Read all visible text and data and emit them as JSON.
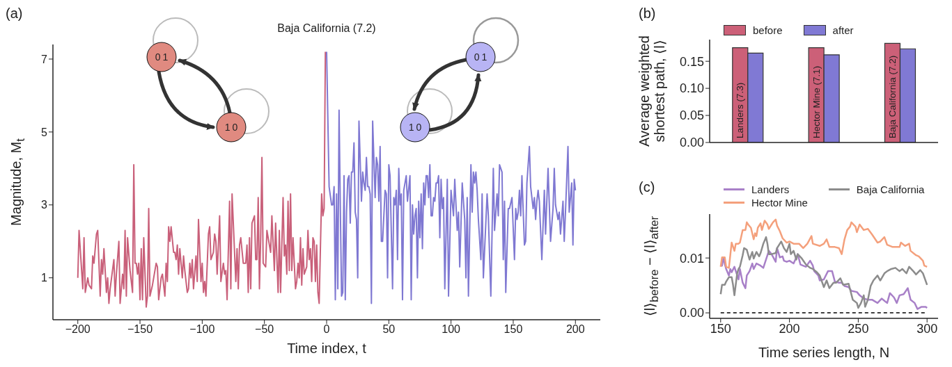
{
  "chart_data": [
    {
      "type": "line",
      "title": "Baja California (7.2)",
      "xlabel": "Time index, t",
      "ylabel": "Magnitude, M$_{t}$",
      "annotations": [
        "(a)",
        "01",
        "10",
        "01",
        "10"
      ],
      "xlim": [
        -220,
        220
      ],
      "xticks": [
        -200,
        -150,
        -100,
        -50,
        0,
        50,
        100,
        150,
        200
      ],
      "ylim": [
        -0.15,
        7.4
      ],
      "yticks": [
        1,
        3,
        5,
        7
      ],
      "series": [
        {
          "color": "#c9607a",
          "x": [
            -200,
            -199,
            -196,
            -195,
            -194,
            -192,
            -191,
            -189,
            -188,
            -187,
            -185,
            -184,
            -182,
            -181,
            -180,
            -179,
            -177,
            -176,
            -175,
            -174,
            -171,
            -170,
            -169,
            -167,
            -166,
            -164,
            -163,
            -162,
            -161,
            -160,
            -158,
            -156,
            -155,
            -154,
            -153,
            -152,
            -151,
            -150,
            -149,
            -148,
            -147,
            -145,
            -144,
            -143,
            -142,
            -140,
            -137,
            -136,
            -135,
            -133,
            -132,
            -130,
            -129,
            -128,
            -127,
            -126,
            -125,
            -123,
            -122,
            -121,
            -120,
            -119,
            -118,
            -116,
            -115,
            -114,
            -112,
            -111,
            -110,
            -109,
            -108,
            -107,
            -105,
            -104,
            -103,
            -101,
            -100,
            -99,
            -98,
            -97,
            -95,
            -94,
            -93,
            -91,
            -90,
            -89,
            -88,
            -86,
            -85,
            -83,
            -82,
            -81,
            -80,
            -78,
            -77,
            -76,
            -73,
            -72,
            -71,
            -70,
            -69,
            -67,
            -65,
            -64,
            -63,
            -62,
            -61,
            -60,
            -58,
            -57,
            -56,
            -55,
            -54,
            -53,
            -52,
            -51,
            -49,
            -48,
            -47,
            -45,
            -44,
            -42,
            -41,
            -39,
            -38,
            -37,
            -35,
            -34,
            -33,
            -32,
            -31,
            -30,
            -29,
            -28,
            -27,
            -25,
            -24,
            -23,
            -22,
            -21,
            -20,
            -19,
            -18,
            -16,
            -15,
            -14,
            -13,
            -12,
            -11,
            -10,
            -9,
            -8,
            -7,
            -6,
            -4,
            -3,
            -2,
            -1
          ],
          "values": [
            1.0,
            2.3,
            0.7,
            2.1,
            0.6,
            1.0,
            0.8,
            0.7,
            1.6,
            1.4,
            2.2,
            2.3,
            0.5,
            1.5,
            1.1,
            1.8,
            0.6,
            1.0,
            0.3,
            0.7,
            1.5,
            0.5,
            1.1,
            2.0,
            0.3,
            1.1,
            0.7,
            2.3,
            0.5,
            2.1,
            1.2,
            0.6,
            4.1,
            1.4,
            1.4,
            1.1,
            1.4,
            0.4,
            1.8,
            0.4,
            2.1,
            0.2,
            0.5,
            2.9,
            0.5,
            0.8,
            1.4,
            1.3,
            0.4,
            1.0,
            1.1,
            0.5,
            1.4,
            0.9,
            2.4,
            2.0,
            2.4,
            1.7,
            1.7,
            1.5,
            1.9,
            1.1,
            1.8,
            1.0,
            1.6,
            1.2,
            0.6,
            0.7,
            1.4,
            1.0,
            1.5,
            0.7,
            1.6,
            0.9,
            2.6,
            0.9,
            1.4,
            0.6,
            0.9,
            0.5,
            2.2,
            2.4,
            1.5,
            1.7,
            2.2,
            2.0,
            1.1,
            2.7,
            0.9,
            1.4,
            1.1,
            1.2,
            0.4,
            3.1,
            0.7,
            3.3,
            0.9,
            1.8,
            0.7,
            1.9,
            2.1,
            1.4,
            1.4,
            1.9,
            0.6,
            2.1,
            0.7,
            2.5,
            2.7,
            1.5,
            1.5,
            3.2,
            0.7,
            2.1,
            4.3,
            1.4,
            1.3,
            2.3,
            2.1,
            1.7,
            2.7,
            1.2,
            2.5,
            0.6,
            2.3,
            0.6,
            3.2,
            1.6,
            1.9,
            1.1,
            3.1,
            1.2,
            3.3,
            1.2,
            2.1,
            0.7,
            0.9,
            1.4,
            1.0,
            2.1,
            0.8,
            1.8,
            1.1,
            1.3,
            2.3,
            1.5,
            1.8,
            0.9,
            2.1,
            2.0,
            0.9,
            1.9,
            0.6,
            0.3,
            3.3,
            2.7,
            2.9,
            7.2
          ]
        },
        {
          "color": "#7f78d2",
          "x": [
            0,
            2,
            4,
            5,
            6,
            7,
            8,
            9,
            10,
            11,
            12,
            13,
            14,
            15,
            16,
            17,
            18,
            19,
            20,
            21,
            22,
            23,
            24,
            25,
            26,
            28,
            29,
            30,
            31,
            32,
            33,
            34,
            35,
            36,
            37,
            39,
            40,
            41,
            42,
            43,
            44,
            45,
            47,
            48,
            49,
            50,
            51,
            53,
            54,
            55,
            56,
            57,
            58,
            59,
            60,
            61,
            62,
            64,
            65,
            67,
            68,
            69,
            70,
            71,
            72,
            73,
            74,
            75,
            76,
            77,
            78,
            79,
            80,
            81,
            82,
            83,
            84,
            85,
            86,
            87,
            88,
            89,
            90,
            91,
            92,
            93,
            94,
            95,
            97,
            98,
            100,
            102,
            103,
            105,
            106,
            107,
            109,
            111,
            112,
            113,
            114,
            116,
            117,
            118,
            119,
            120,
            121,
            122,
            124,
            125,
            126,
            129,
            130,
            132,
            134,
            135,
            137,
            138,
            139,
            141,
            142,
            143,
            144,
            146,
            147,
            149,
            151,
            152,
            153,
            154,
            155,
            156,
            157,
            159,
            160,
            161,
            163,
            164,
            166,
            167,
            168,
            169,
            170,
            171,
            173,
            175,
            176,
            178,
            180,
            182,
            183,
            184,
            186,
            187,
            188,
            190,
            191,
            192,
            194,
            195,
            197,
            198,
            199,
            200
          ],
          "values": [
            7.2,
            3.5,
            3.0,
            3.0,
            3.5,
            0.4,
            3.3,
            0.7,
            5.6,
            3.0,
            0.5,
            0.6,
            3.8,
            0.4,
            2.8,
            3.7,
            3.8,
            2.5,
            3.9,
            3.9,
            4.7,
            2.8,
            2.6,
            1.0,
            5.3,
            3.1,
            3.9,
            3.6,
            3.4,
            4.3,
            3.5,
            3.5,
            3.3,
            0.3,
            5.3,
            3.2,
            4.3,
            4.1,
            3.1,
            4.6,
            2.0,
            2.0,
            3.4,
            3.3,
            1.0,
            4.1,
            3.8,
            0.7,
            3.2,
            3.0,
            3.4,
            1.5,
            4.0,
            3.0,
            3.3,
            0.4,
            3.4,
            3.8,
            3.1,
            3.8,
            0.4,
            3.0,
            2.2,
            2.7,
            2.9,
            1.0,
            3.1,
            2.1,
            3.3,
            1.8,
            3.6,
            3.0,
            3.8,
            3.8,
            3.2,
            4.1,
            2.7,
            2.7,
            3.2,
            3.1,
            3.6,
            3.6,
            3.8,
            2.1,
            3.7,
            2.9,
            3.2,
            0.7,
            3.7,
            0.5,
            3.4,
            2.7,
            3.7,
            2.3,
            2.8,
            1.3,
            3.6,
            2.6,
            1.0,
            3.2,
            0.5,
            4.1,
            2.8,
            3.9,
            3.6,
            3.9,
            3.4,
            2.6,
            1.5,
            3.3,
            1.0,
            3.3,
            2.7,
            0.5,
            4.0,
            2.3,
            3.3,
            2.7,
            4.1,
            3.9,
            1.5,
            3.1,
            0.6,
            2.9,
            2.9,
            3.2,
            1.5,
            2.9,
            2.6,
            2.8,
            3.4,
            2.7,
            3.8,
            1.9,
            2.0,
            3.6,
            4.6,
            3.5,
            2.9,
            3.2,
            2.6,
            3.1,
            3.4,
            3.1,
            1.5,
            3.4,
            2.2,
            4.0,
            2.0,
            2.9,
            4.0,
            3.0,
            2.6,
            2.8,
            2.2,
            3.1,
            2.0,
            2.8,
            4.6,
            2.8,
            3.6,
            1.9,
            3.7,
            3.4
          ]
        }
      ]
    },
    {
      "type": "bar",
      "ylabel": "Average weighted shortest path, ⟨l⟩",
      "annotations": [
        "(b)"
      ],
      "categories": [
        "Landers (7.3)",
        "Hector Mine (7.1)",
        "Baja California (7.2)"
      ],
      "ylim": [
        0,
        0.19
      ],
      "yticks": [
        {
          "value": 0,
          "label": "0.00"
        },
        {
          "value": 0.05,
          "label": "0.05"
        },
        {
          "value": 0.1,
          "label": "0.10"
        },
        {
          "value": 0.15,
          "label": "0.15"
        }
      ],
      "legend": "top",
      "series": [
        {
          "name": "before",
          "color": "#cc6078",
          "values": [
            0.175,
            0.175,
            0.183
          ]
        },
        {
          "name": "after",
          "color": "#8079d4",
          "values": [
            0.165,
            0.162,
            0.173
          ]
        }
      ]
    },
    {
      "type": "line",
      "xlabel": "Time series length, N",
      "ylabel": "⟨l⟩$_{before}$ − ⟨l⟩$_{after}$",
      "annotations": [
        "(c)"
      ],
      "xlim": [
        142,
        308
      ],
      "xticks": [
        150,
        200,
        250,
        300
      ],
      "ylim": [
        -0.001,
        0.018
      ],
      "yticks": [
        {
          "value": 0,
          "label": "0.00"
        },
        0.01
      ],
      "legend": "top",
      "ref_lines": [
        {
          "axis": "y",
          "value": 0,
          "color": "#000000",
          "line_style": "dashed"
        }
      ],
      "series": [
        {
          "name": "Landers",
          "color": "#a880c8",
          "x": [
            150,
            151,
            152,
            153,
            154,
            156,
            157,
            158,
            160,
            161,
            163,
            164,
            166,
            168,
            169,
            171,
            173,
            174,
            176,
            179,
            181,
            184,
            185,
            187,
            190,
            191,
            193,
            195,
            196,
            198,
            200,
            203,
            206,
            208,
            212,
            215,
            217,
            218,
            221,
            222,
            225,
            228,
            231,
            233,
            236,
            238,
            240,
            243,
            245,
            249,
            251,
            254,
            257,
            260,
            264,
            267,
            271,
            273,
            276,
            278,
            280,
            283,
            286,
            288,
            291,
            293,
            296,
            299,
            300
          ],
          "values": [
            0.0086,
            0.0086,
            0.0101,
            0.0089,
            0.008,
            0.0068,
            0.008,
            0.0074,
            0.0084,
            0.0076,
            0.0061,
            0.008,
            0.0055,
            0.0045,
            0.0068,
            0.0076,
            0.009,
            0.008,
            0.009,
            0.0086,
            0.0082,
            0.0105,
            0.0113,
            0.0107,
            0.0093,
            0.0118,
            0.0101,
            0.0103,
            0.0095,
            0.0093,
            0.0095,
            0.009,
            0.0107,
            0.0088,
            0.0084,
            0.0095,
            0.0086,
            0.0076,
            0.0068,
            0.0059,
            0.0061,
            0.0076,
            0.0076,
            0.0057,
            0.0055,
            0.0055,
            0.0049,
            0.0047,
            0.004,
            0.0038,
            0.0032,
            0.0026,
            0.0024,
            0.0024,
            0.0018,
            0.0026,
            0.0018,
            0.0036,
            0.0028,
            0.0018,
            0.0032,
            0.0034,
            0.0045,
            0.0024,
            0.0018,
            0.0007,
            0.0011,
            0.0011,
            0.0009
          ]
        },
        {
          "name": "Hector Mine",
          "color": "#f4a07c",
          "x": [
            150,
            151,
            153,
            154,
            156,
            157,
            158,
            160,
            161,
            163,
            164,
            166,
            168,
            169,
            170,
            172,
            174,
            175,
            176,
            177,
            179,
            180,
            182,
            184,
            185,
            187,
            188,
            190,
            191,
            193,
            195,
            198,
            200,
            203,
            207,
            210,
            213,
            216,
            217,
            222,
            225,
            227,
            229,
            233,
            236,
            238,
            240,
            242,
            244,
            245,
            248,
            249,
            251,
            254,
            257,
            260,
            264,
            266,
            269,
            271,
            275,
            280,
            281,
            284,
            287,
            288,
            292,
            294,
            297,
            298,
            300
          ],
          "values": [
            0.0084,
            0.0101,
            0.0101,
            0.0084,
            0.0082,
            0.0105,
            0.0128,
            0.0113,
            0.0126,
            0.0126,
            0.0128,
            0.0151,
            0.0151,
            0.0165,
            0.0161,
            0.0155,
            0.0134,
            0.0145,
            0.014,
            0.0155,
            0.0163,
            0.0151,
            0.0168,
            0.0161,
            0.0153,
            0.0161,
            0.0165,
            0.017,
            0.0159,
            0.0149,
            0.0136,
            0.0128,
            0.013,
            0.0126,
            0.0126,
            0.0118,
            0.0126,
            0.014,
            0.0126,
            0.0122,
            0.0126,
            0.0134,
            0.012,
            0.012,
            0.0118,
            0.0107,
            0.0134,
            0.0151,
            0.0157,
            0.0165,
            0.0157,
            0.0147,
            0.0161,
            0.0151,
            0.0153,
            0.0143,
            0.0128,
            0.013,
            0.0138,
            0.0124,
            0.012,
            0.012,
            0.0128,
            0.0122,
            0.0126,
            0.0113,
            0.0105,
            0.0103,
            0.0095,
            0.0086,
            0.0084
          ]
        },
        {
          "name": "Baja California",
          "color": "#8c8c8c",
          "x": [
            150,
            151,
            153,
            154,
            156,
            158,
            159,
            160,
            162,
            163,
            164,
            166,
            167,
            169,
            171,
            173,
            174,
            176,
            178,
            179,
            181,
            183,
            184,
            185,
            187,
            190,
            191,
            193,
            194,
            196,
            198,
            200,
            201,
            203,
            205,
            206,
            209,
            212,
            215,
            217,
            220,
            222,
            225,
            227,
            229,
            232,
            234,
            237,
            239,
            243,
            246,
            249,
            250,
            252,
            254,
            255,
            257,
            259,
            261,
            264,
            266,
            269,
            271,
            274,
            277,
            280,
            282,
            285,
            287,
            290,
            292,
            295,
            297,
            300
          ],
          "values": [
            0.0034,
            0.0051,
            0.0051,
            0.0057,
            0.0065,
            0.0065,
            0.0051,
            0.0032,
            0.0072,
            0.008,
            0.0084,
            0.0105,
            0.0118,
            0.0115,
            0.0097,
            0.0111,
            0.0099,
            0.0111,
            0.0103,
            0.0109,
            0.0126,
            0.0138,
            0.0126,
            0.0107,
            0.0107,
            0.0109,
            0.0118,
            0.0126,
            0.013,
            0.0118,
            0.0111,
            0.0126,
            0.0107,
            0.0113,
            0.0097,
            0.0107,
            0.0099,
            0.0088,
            0.0082,
            0.008,
            0.0074,
            0.0068,
            0.0047,
            0.0059,
            0.0045,
            0.0055,
            0.0055,
            0.0063,
            0.0051,
            0.0053,
            0.0024,
            0.0018,
            0.0009,
            0.0018,
            0.0032,
            0.0011,
            0.0024,
            0.0049,
            0.0059,
            0.0068,
            0.0059,
            0.0072,
            0.0076,
            0.008,
            0.0082,
            0.0076,
            0.008,
            0.0072,
            0.0084,
            0.0076,
            0.007,
            0.0078,
            0.0072,
            0.0051
          ]
        }
      ]
    }
  ]
}
